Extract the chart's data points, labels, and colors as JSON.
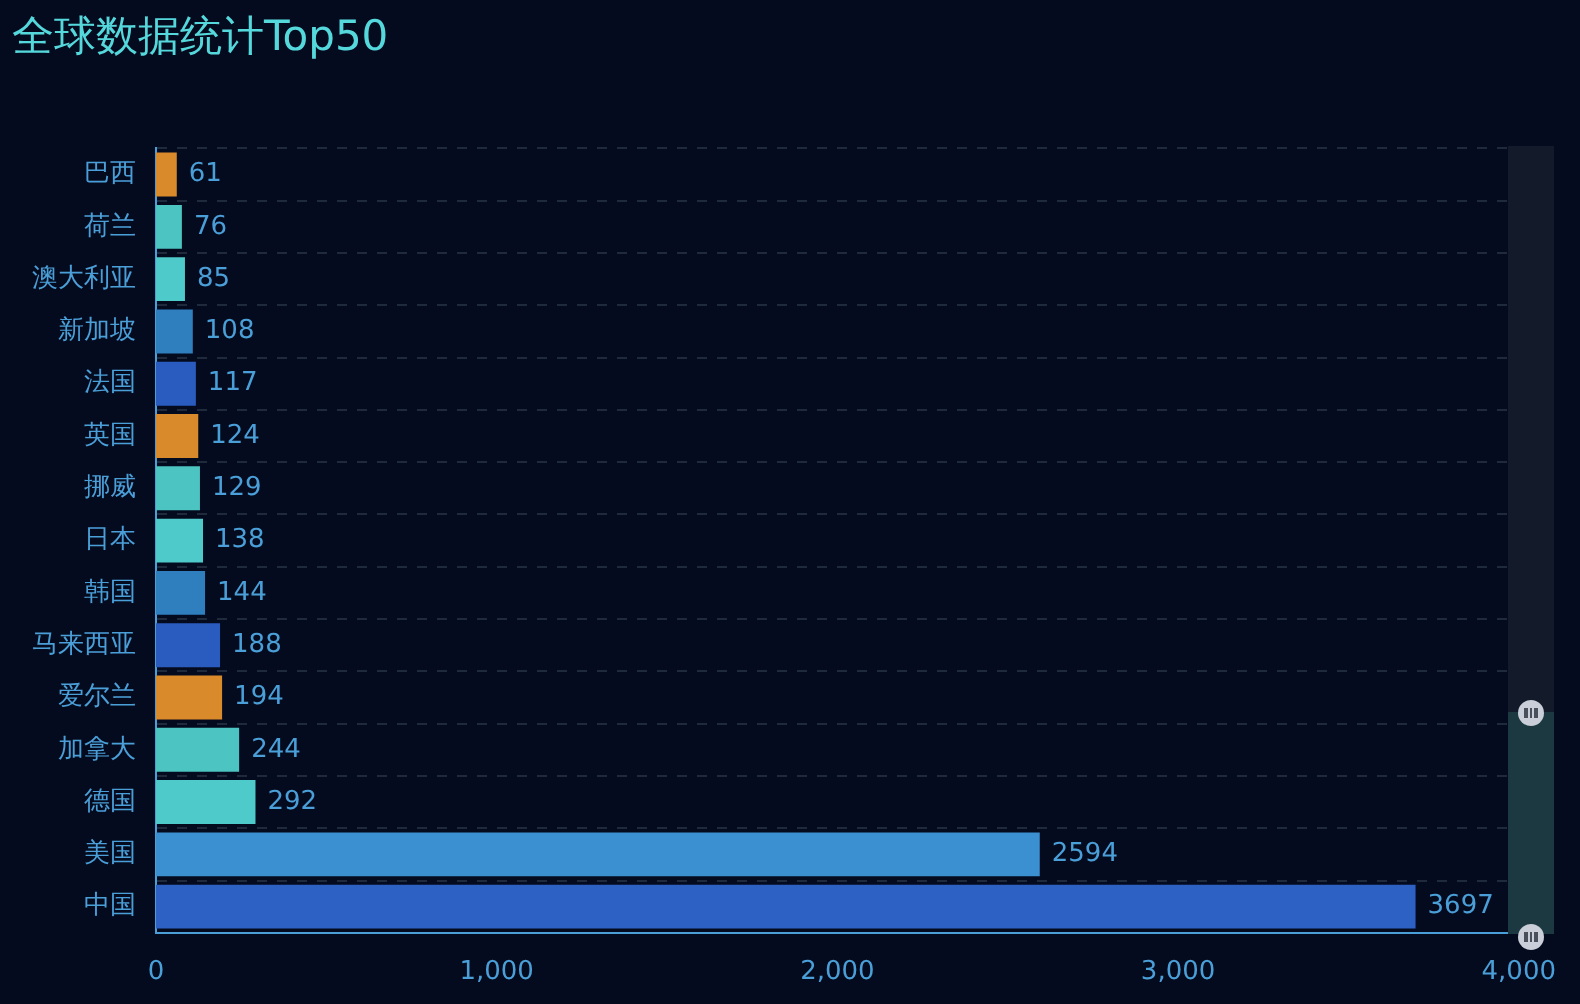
{
  "chart_data": {
    "type": "bar",
    "orientation": "horizontal",
    "title": "全球数据统计Top50",
    "categories": [
      "巴西",
      "荷兰",
      "澳大利亚",
      "新加坡",
      "法国",
      "英国",
      "挪威",
      "日本",
      "韩国",
      "马来西亚",
      "爱尔兰",
      "加拿大",
      "德国",
      "美国",
      "中国"
    ],
    "values": [
      61,
      76,
      85,
      108,
      117,
      124,
      129,
      138,
      144,
      188,
      194,
      244,
      292,
      2594,
      3697
    ],
    "colors": [
      "#d98a2a",
      "#4cc4c2",
      "#4fcaca",
      "#2f7fbf",
      "#2a5cc0",
      "#d98a2a",
      "#4cc4c2",
      "#4fcaca",
      "#2f7fbf",
      "#2a5cc0",
      "#d98a2a",
      "#4cc4c2",
      "#4fcaca",
      "#3a90d0",
      "#2d62c4"
    ],
    "xlim": [
      0,
      4000
    ],
    "xticks": [
      0,
      {
        "value": 1000,
        "label": "1,000"
      },
      {
        "value": 2000,
        "label": "2,000"
      },
      {
        "value": 3000,
        "label": "3,000"
      },
      {
        "value": 4000,
        "label": "4,000"
      }
    ],
    "grid": "y",
    "data_labels": true
  }
}
